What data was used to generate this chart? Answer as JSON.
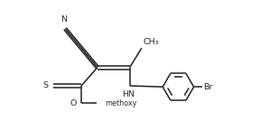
{
  "bg_color": "#ffffff",
  "line_color": "#2a2a2a",
  "line_width": 1.15,
  "font_size": 6.8,
  "fig_width": 2.99,
  "fig_height": 1.55,
  "dpi": 100,
  "xlim": [
    0,
    9.5
  ],
  "ylim": [
    0,
    5.0
  ]
}
